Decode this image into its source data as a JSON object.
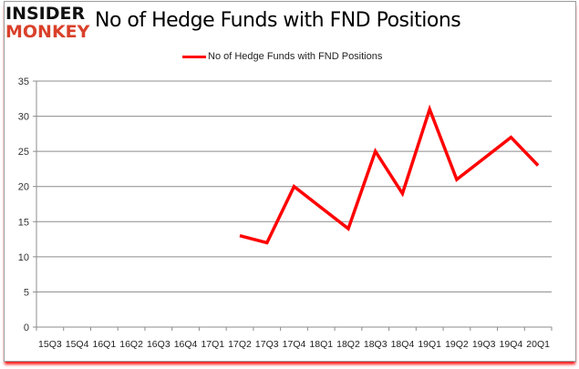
{
  "header": {
    "logo_line1": "INSIDER",
    "logo_line2": "MONKEY",
    "title": "No of Hedge Funds with FND Positions"
  },
  "legend": {
    "label": "No of Hedge Funds with FND Positions",
    "color": "#ff0000"
  },
  "chart_data": {
    "type": "line",
    "title": "No of Hedge Funds with FND Positions",
    "xlabel": "",
    "ylabel": "",
    "ylim": [
      0,
      35
    ],
    "yticks": [
      0,
      5,
      10,
      15,
      20,
      25,
      30,
      35
    ],
    "grid": true,
    "legend_position": "top",
    "categories": [
      "15Q3",
      "15Q4",
      "16Q1",
      "16Q2",
      "16Q3",
      "16Q4",
      "17Q1",
      "17Q2",
      "17Q3",
      "17Q4",
      "18Q1",
      "18Q2",
      "18Q3",
      "18Q4",
      "19Q1",
      "19Q2",
      "19Q3",
      "19Q4",
      "20Q1"
    ],
    "series": [
      {
        "name": "No of Hedge Funds with FND Positions",
        "color": "#ff0000",
        "values": [
          null,
          null,
          null,
          null,
          null,
          null,
          null,
          13,
          12,
          20,
          17,
          14,
          25,
          19,
          31,
          21,
          24,
          27,
          23
        ]
      }
    ]
  }
}
